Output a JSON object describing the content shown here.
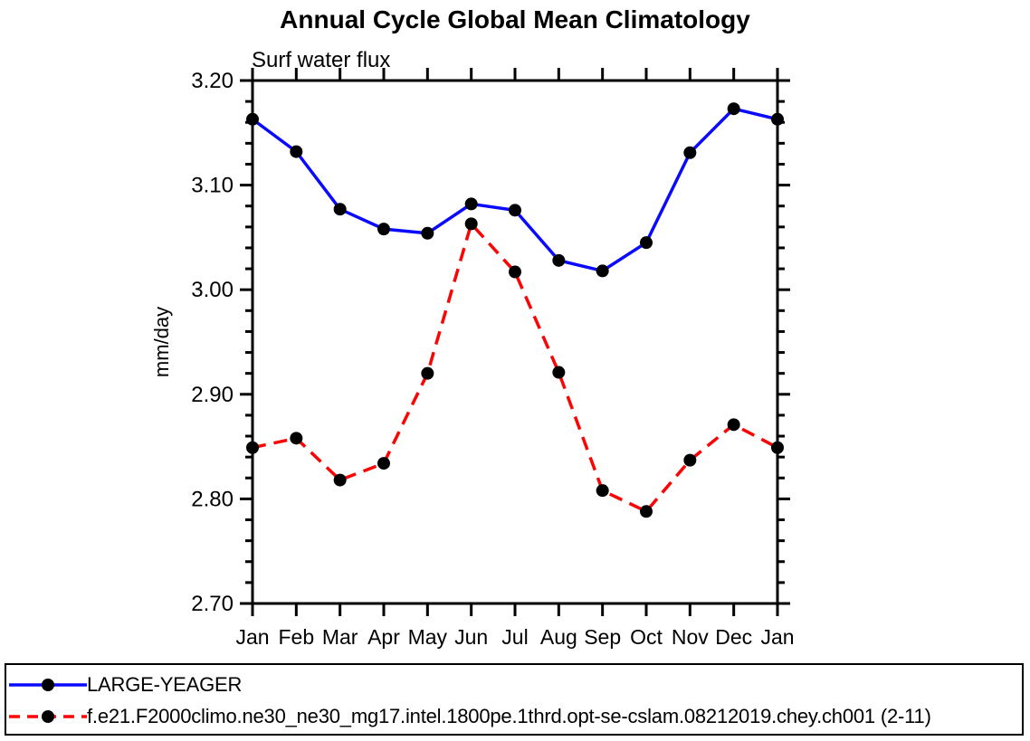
{
  "title": "Annual Cycle Global Mean Climatology",
  "subtitle": "Surf water flux",
  "colors": {
    "axis": "#000000",
    "marker": "#000000",
    "series1": "#0a0aff",
    "series2": "#fb0404"
  },
  "chart_data": {
    "type": "line",
    "title": "Annual Cycle Global Mean Climatology",
    "subtitle": "Surf water flux",
    "xlabel": "",
    "ylabel": "mm/day",
    "categories": [
      "Jan",
      "Feb",
      "Mar",
      "Apr",
      "May",
      "Jun",
      "Jul",
      "Aug",
      "Sep",
      "Oct",
      "Nov",
      "Dec",
      "Jan"
    ],
    "ylim": [
      2.7,
      3.2
    ],
    "ytick_major": 0.1,
    "ytick_minor": 0.02,
    "ytick_labels": [
      "2.70",
      "2.80",
      "2.90",
      "3.00",
      "3.10",
      "3.20"
    ],
    "grid": false,
    "legend_position": "bottom-box",
    "series": [
      {
        "name": "LARGE-YEAGER",
        "color": "#0a0aff",
        "line_style": "solid",
        "marker": "black-circle",
        "values": [
          3.163,
          3.132,
          3.077,
          3.058,
          3.054,
          3.082,
          3.076,
          3.028,
          3.018,
          3.045,
          3.131,
          3.173,
          3.163
        ]
      },
      {
        "name": "f.e21.F2000climo.ne30_ne30_mg17.intel.1800pe.1thrd.opt-se-cslam.08212019.chey.ch001 (2-11)",
        "color": "#fb0404",
        "line_style": "dashed",
        "marker": "black-circle",
        "values": [
          2.849,
          2.858,
          2.818,
          2.834,
          2.92,
          3.063,
          3.017,
          2.921,
          2.808,
          2.788,
          2.837,
          2.871,
          2.849
        ]
      }
    ]
  }
}
